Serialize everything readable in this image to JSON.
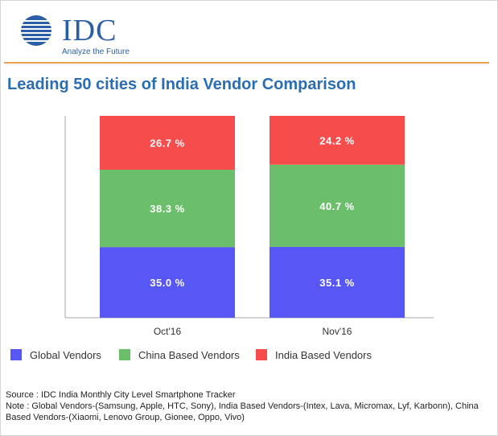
{
  "logo": {
    "brand": "IDC",
    "tagline": "Analyze the Future"
  },
  "colors": {
    "accent_rule": "#e8a24a",
    "title": "#2b6db3"
  },
  "chart_data": {
    "type": "bar",
    "stacked": true,
    "percent": true,
    "title": "Leading 50 cities of India Vendor Comparison",
    "categories": [
      "Oct'16",
      "Nov'16"
    ],
    "series": [
      {
        "name": "Global Vendors",
        "color": "#5757f5",
        "values": [
          35.0,
          35.1
        ],
        "labels": [
          "35.0 %",
          "35.1 %"
        ]
      },
      {
        "name": "China Based Vendors",
        "color": "#6bbf6b",
        "values": [
          38.3,
          40.7
        ],
        "labels": [
          "38.3 %",
          "40.7 %"
        ]
      },
      {
        "name": "India Based Vendors",
        "color": "#f64c4c",
        "values": [
          26.7,
          24.2
        ],
        "labels": [
          "26.7 %",
          "24.2 %"
        ]
      }
    ],
    "ylim": [
      0,
      100
    ],
    "legend": "bottom",
    "grid": false
  },
  "notes": {
    "source": "Source : IDC India Monthly City Level Smartphone Tracker",
    "note": "Note : Global Vendors-(Samsung, Apple, HTC, Sony), India Based Vendors-(Intex, Lava, Micromax, Lyf, Karbonn), China Based Vendors-(Xiaomi, Lenovo Group, Gionee, Oppo, Vivo)"
  }
}
